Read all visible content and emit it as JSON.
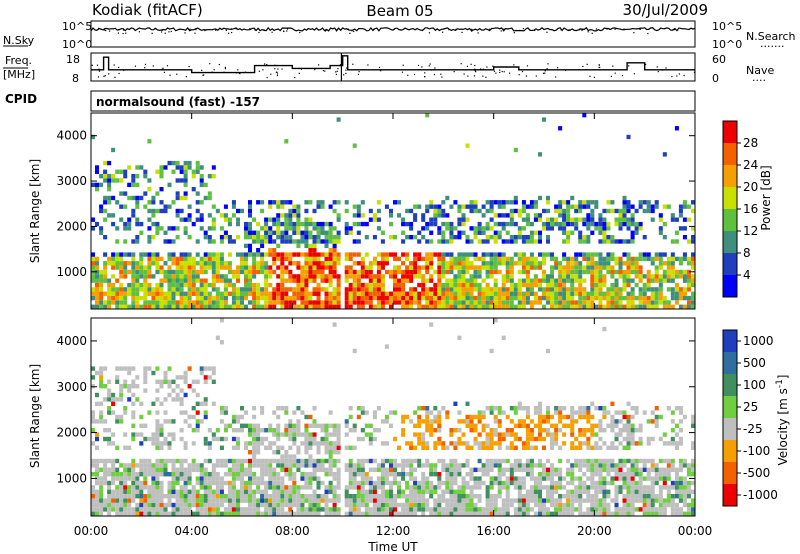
{
  "header": {
    "station": "Kodiak (fitACF)",
    "beam": "Beam 05",
    "date": "30/Jul/2009"
  },
  "colors": {
    "power_scale": [
      "#0000ff",
      "#1f3fbf",
      "#3f8f7f",
      "#5fbf3f",
      "#c8e000",
      "#f5a000",
      "#f26000",
      "#ee0000"
    ],
    "velocity_scale": [
      "#1f3fbf",
      "#2f6f9f",
      "#3f8f5f",
      "#6fcf3f",
      "#bfbfbf",
      "#f5a000",
      "#f26000",
      "#ee0000"
    ]
  },
  "chart_data": [
    {
      "type": "line",
      "name": "noise",
      "left_labels": [
        "N.Sky",
        "10^5",
        "10^0"
      ],
      "right_labels": [
        "10^5",
        "10^0",
        "N.Search",
        "·······"
      ],
      "ylim_log": [
        0,
        5
      ],
      "series": [
        {
          "name": "N.Sky",
          "mean_log": 3.4
        },
        {
          "name": "N.Search",
          "mean_log": 3.2
        }
      ]
    },
    {
      "type": "line",
      "name": "frequency",
      "left_labels": [
        "Freq.",
        "[MHz]",
        "18",
        "8"
      ],
      "right_labels": [
        "60",
        "0",
        "Nave",
        "····"
      ],
      "ylim": [
        8,
        18
      ],
      "x": [
        0.0,
        0.5,
        0.7,
        4.0,
        6.5,
        8.0,
        9.5,
        10.0,
        10.2,
        16.0,
        17.0,
        21.3,
        22.0
      ],
      "y": [
        12,
        16.5,
        12,
        11,
        13.5,
        12.5,
        13.5,
        17,
        12,
        13,
        12,
        14.5,
        12
      ]
    },
    {
      "type": "heatmap",
      "name": "power",
      "cpid_label": "CPID",
      "program": "normalsound (fast) -157",
      "ylabel": "Slant Range [km]",
      "ylim": [
        180,
        4500
      ],
      "yticks": [
        1000,
        2000,
        3000,
        4000
      ],
      "xticks": [
        "00:00",
        "04:00",
        "08:00",
        "12:00",
        "16:00",
        "20:00",
        "00:00"
      ],
      "xlim": [
        0,
        24
      ],
      "colorbar_label": "Power [dB]",
      "colorbar_ticks": [
        "28",
        "24",
        "20",
        "16",
        "12",
        "8",
        "4"
      ],
      "data_gap_hours": [
        9.95,
        10.1
      ]
    },
    {
      "type": "heatmap",
      "name": "velocity",
      "ylabel": "Slant Range [km]",
      "xlabel": "Time UT",
      "ylim": [
        180,
        4500
      ],
      "yticks": [
        1000,
        2000,
        3000,
        4000
      ],
      "xticks": [
        "00:00",
        "04:00",
        "08:00",
        "12:00",
        "16:00",
        "20:00",
        "00:00"
      ],
      "xlim": [
        0,
        24
      ],
      "colorbar_label": "Velocity [m s",
      "colorbar_label_sup": "-1",
      "colorbar_label_end": "]",
      "colorbar_ticks": [
        "1000",
        "500",
        "100",
        "25",
        "-25",
        "-100",
        "-500",
        "-1000"
      ]
    }
  ]
}
